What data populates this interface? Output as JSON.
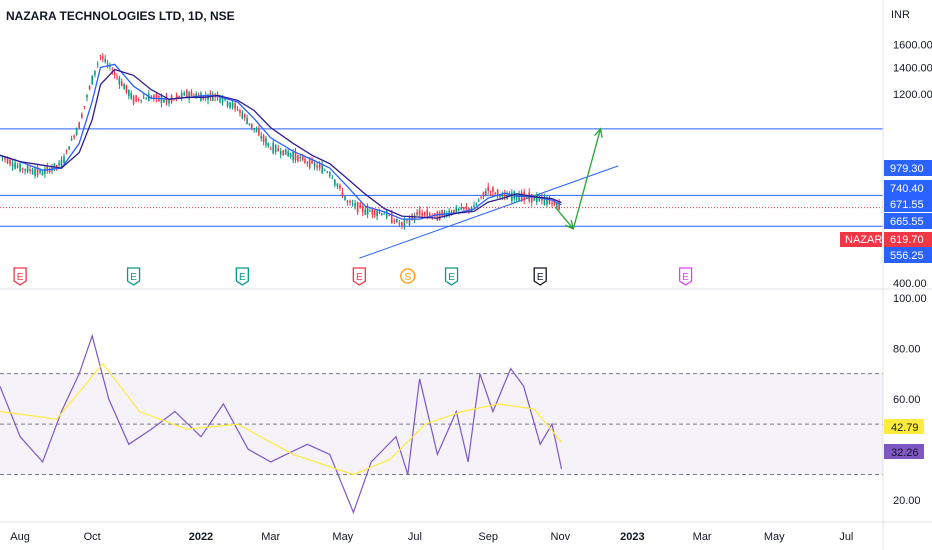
{
  "title": "NAZARA TECHNOLOGIES LTD, 1D, NSE",
  "currency": "INR",
  "price_axis": {
    "ticks": [
      "1600.00",
      "1400.00",
      "1200.00",
      "400.00"
    ],
    "scale": "log"
  },
  "rsi_axis": {
    "ticks": [
      "100.00",
      "80.00",
      "60.00",
      "20.00"
    ]
  },
  "time_axis": {
    "ticks": [
      "Aug",
      "Oct",
      "2022",
      "Mar",
      "May",
      "Jul",
      "Sep",
      "Nov",
      "2023",
      "Mar",
      "May",
      "Jul"
    ]
  },
  "price_labels": [
    {
      "text": "979.30",
      "color": "#2962ff"
    },
    {
      "text": "740.40",
      "color": "#2962ff"
    },
    {
      "text": "671.55",
      "color": "#2962ff"
    },
    {
      "text": "665.55",
      "color": "#2962ff"
    },
    {
      "text": "556.25",
      "color": "#2962ff"
    }
  ],
  "last_price": {
    "symbol": "NAZARA",
    "text": "619.70",
    "color": "#f23645"
  },
  "rsi_labels": [
    {
      "text": "42.79",
      "color": "#ffeb3b"
    },
    {
      "text": "32.26",
      "color": "#7e57c2"
    }
  ],
  "events": [
    {
      "letter": "E",
      "color": "#f23645"
    },
    {
      "letter": "E",
      "color": "#089981"
    },
    {
      "letter": "E",
      "color": "#089981"
    },
    {
      "letter": "E",
      "color": "#f23645"
    },
    {
      "letter": "S",
      "color": "#ff9800"
    },
    {
      "letter": "E",
      "color": "#089981"
    },
    {
      "letter": "E",
      "color": "#131722"
    },
    {
      "letter": "E",
      "color": "#e040fb"
    }
  ],
  "chart_data": [
    {
      "type": "candlestick",
      "title": "NAZARA TECHNOLOGIES LTD, 1D, NSE",
      "ylabel": "INR",
      "ylim": [
        400,
        1650
      ],
      "x_range": [
        "2021-07-15",
        "2023-08-01"
      ],
      "series": [
        {
          "name": "price",
          "points": [
            [
              "2021-07-15",
              840
            ],
            [
              "2021-08-01",
              780
            ],
            [
              "2021-08-20",
              760
            ],
            [
              "2021-09-05",
              800
            ],
            [
              "2021-09-20",
              1000
            ],
            [
              "2021-10-01",
              1300
            ],
            [
              "2021-10-08",
              1500
            ],
            [
              "2021-10-20",
              1350
            ],
            [
              "2021-11-05",
              1160
            ],
            [
              "2021-11-20",
              1180
            ],
            [
              "2021-12-05",
              1150
            ],
            [
              "2021-12-20",
              1200
            ],
            [
              "2022-01-05",
              1180
            ],
            [
              "2022-01-15",
              1190
            ],
            [
              "2022-02-01",
              1100
            ],
            [
              "2022-02-15",
              980
            ],
            [
              "2022-03-01",
              880
            ],
            [
              "2022-03-20",
              840
            ],
            [
              "2022-04-05",
              800
            ],
            [
              "2022-04-20",
              760
            ],
            [
              "2022-05-05",
              640
            ],
            [
              "2022-05-20",
              610
            ],
            [
              "2022-06-05",
              600
            ],
            [
              "2022-06-20",
              560
            ],
            [
              "2022-07-05",
              600
            ],
            [
              "2022-07-20",
              590
            ],
            [
              "2022-08-05",
              610
            ],
            [
              "2022-08-20",
              620
            ],
            [
              "2022-09-01",
              690
            ],
            [
              "2022-09-15",
              660
            ],
            [
              "2022-09-25",
              665
            ],
            [
              "2022-10-10",
              655
            ],
            [
              "2022-10-25",
              640
            ],
            [
              "2022-11-02",
              619.7
            ]
          ]
        }
      ],
      "horizontal_levels": [
        979.3,
        665.55,
        556.25
      ],
      "arrows": [
        {
          "from": [
            "2022-11-05",
            556
          ],
          "to": [
            "2022-12-01",
            990
          ]
        }
      ]
    },
    {
      "type": "line",
      "title": "",
      "ylim": [
        10,
        100
      ],
      "band": [
        30,
        70
      ],
      "series": [
        {
          "name": "RSI",
          "color": "#7e57c2",
          "points": [
            [
              "2021-07-15",
              65
            ],
            [
              "2021-08-01",
              45
            ],
            [
              "2021-08-20",
              35
            ],
            [
              "2021-09-05",
              55
            ],
            [
              "2021-09-20",
              70
            ],
            [
              "2021-10-01",
              85
            ],
            [
              "2021-10-15",
              60
            ],
            [
              "2021-11-01",
              42
            ],
            [
              "2021-11-20",
              48
            ],
            [
              "2021-12-10",
              55
            ],
            [
              "2022-01-01",
              45
            ],
            [
              "2022-01-20",
              58
            ],
            [
              "2022-02-10",
              40
            ],
            [
              "2022-03-01",
              35
            ],
            [
              "2022-04-01",
              42
            ],
            [
              "2022-04-20",
              38
            ],
            [
              "2022-05-10",
              15
            ],
            [
              "2022-05-25",
              35
            ],
            [
              "2022-06-15",
              45
            ],
            [
              "2022-06-25",
              30
            ],
            [
              "2022-07-05",
              68
            ],
            [
              "2022-07-20",
              38
            ],
            [
              "2022-08-05",
              55
            ],
            [
              "2022-08-15",
              35
            ],
            [
              "2022-08-25",
              70
            ],
            [
              "2022-09-05",
              55
            ],
            [
              "2022-09-20",
              72
            ],
            [
              "2022-10-01",
              65
            ],
            [
              "2022-10-15",
              42
            ],
            [
              "2022-10-25",
              50
            ],
            [
              "2022-11-02",
              32.26
            ]
          ]
        },
        {
          "name": "RSI MA",
          "color": "#ffeb3b",
          "points": [
            [
              "2021-07-15",
              55
            ],
            [
              "2021-09-01",
              52
            ],
            [
              "2021-10-10",
              74
            ],
            [
              "2021-11-10",
              55
            ],
            [
              "2021-12-20",
              48
            ],
            [
              "2022-02-01",
              50
            ],
            [
              "2022-03-20",
              38
            ],
            [
              "2022-05-10",
              30
            ],
            [
              "2022-06-10",
              36
            ],
            [
              "2022-07-10",
              50
            ],
            [
              "2022-08-10",
              55
            ],
            [
              "2022-09-10",
              58
            ],
            [
              "2022-10-10",
              56
            ],
            [
              "2022-11-02",
              42.79
            ]
          ]
        }
      ]
    }
  ]
}
